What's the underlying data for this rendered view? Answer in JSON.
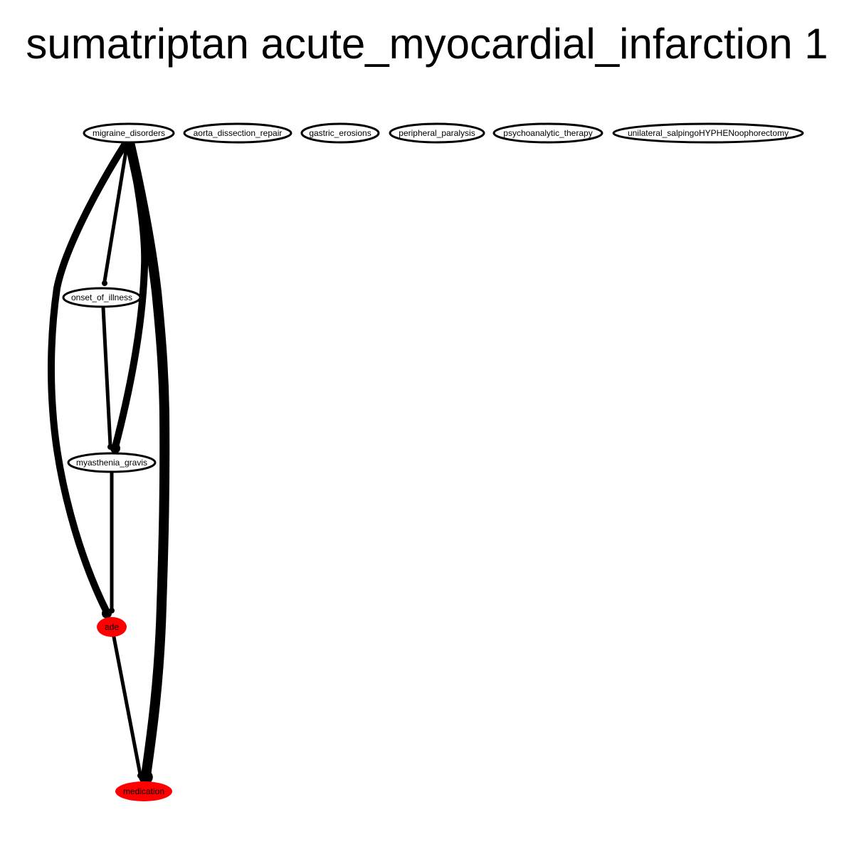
{
  "title": "sumatriptan acute_myocardial_infarction 1",
  "colors": {
    "highlight_fill": "#ff0000",
    "plain_fill": "#ffffff",
    "stroke": "#000000",
    "edge": "#000000"
  },
  "nodes": [
    {
      "id": "migraine_disorders",
      "label": "migraine_disorders",
      "highlight": false
    },
    {
      "id": "aorta_dissection_repair",
      "label": "aorta_dissection_repair",
      "highlight": false
    },
    {
      "id": "gastric_erosions",
      "label": "gastric_erosions",
      "highlight": false
    },
    {
      "id": "peripheral_paralysis",
      "label": "peripheral_paralysis",
      "highlight": false
    },
    {
      "id": "psychoanalytic_therapy",
      "label": "psychoanalytic_therapy",
      "highlight": false
    },
    {
      "id": "unilateral_salpingo",
      "label": "unilateral_salpingoHYPHENoophorectomy",
      "highlight": false
    },
    {
      "id": "onset_of_illness",
      "label": "onset_of_illness",
      "highlight": false
    },
    {
      "id": "myasthenia_gravis",
      "label": "myasthenia_gravis",
      "highlight": false
    },
    {
      "id": "ade",
      "label": "ade",
      "highlight": true
    },
    {
      "id": "medication",
      "label": "medication",
      "highlight": true
    }
  ],
  "edges": [
    {
      "from": "migraine_disorders",
      "to": "onset_of_illness",
      "weight": 1
    },
    {
      "from": "migraine_disorders",
      "to": "myasthenia_gravis",
      "weight": 2
    },
    {
      "from": "migraine_disorders",
      "to": "ade",
      "weight": 2
    },
    {
      "from": "migraine_disorders",
      "to": "medication",
      "weight": 4
    },
    {
      "from": "onset_of_illness",
      "to": "myasthenia_gravis",
      "weight": 1
    },
    {
      "from": "myasthenia_gravis",
      "to": "ade",
      "weight": 1
    },
    {
      "from": "ade",
      "to": "medication",
      "weight": 1
    }
  ]
}
